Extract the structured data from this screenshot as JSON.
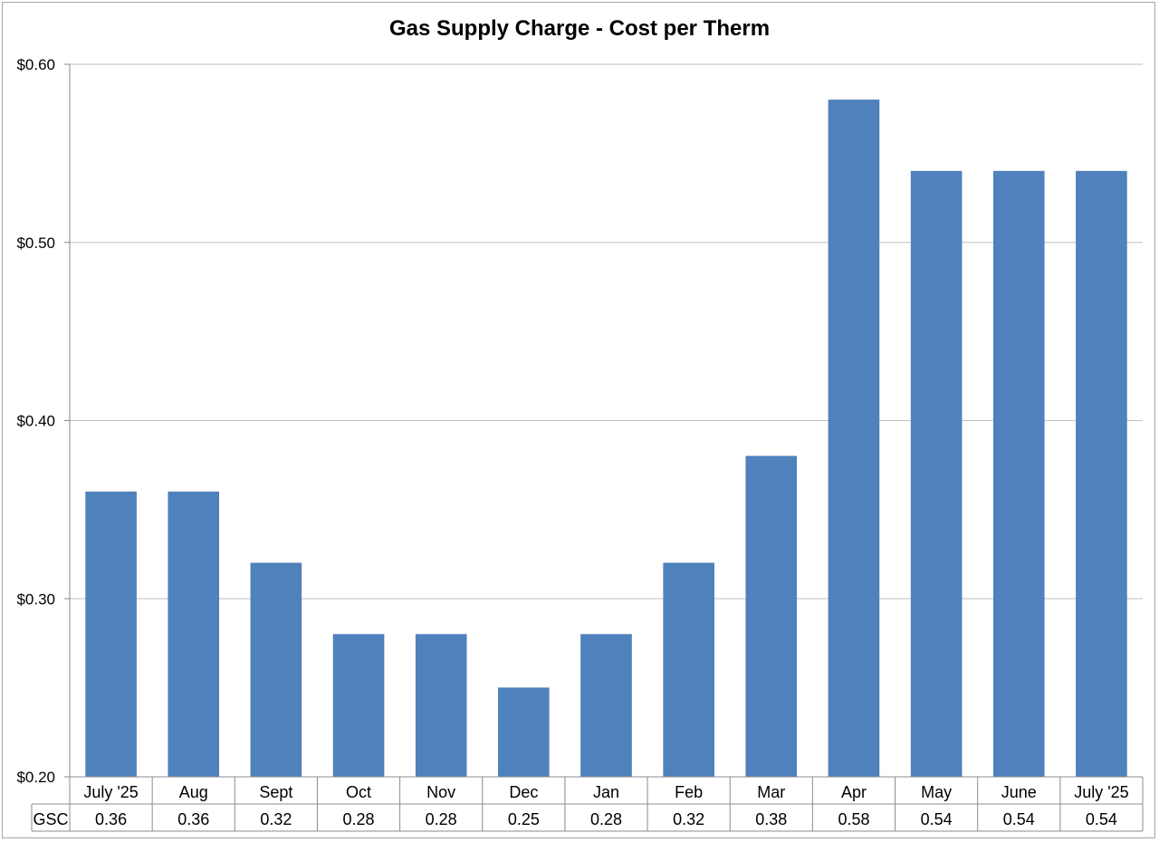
{
  "chart_data": {
    "type": "bar",
    "title": "Gas Supply Charge - Cost per Therm",
    "xlabel": "",
    "ylabel": "",
    "categories": [
      "July '25",
      "Aug",
      "Sept",
      "Oct",
      "Nov",
      "Dec",
      "Jan",
      "Feb",
      "Mar",
      "Apr",
      "May",
      "June",
      "July '25"
    ],
    "series": [
      {
        "name": "GSC",
        "values": [
          0.36,
          0.36,
          0.32,
          0.28,
          0.28,
          0.25,
          0.28,
          0.32,
          0.38,
          0.58,
          0.54,
          0.54,
          0.54
        ],
        "table_values": [
          "0.36",
          "0.36",
          "0.32",
          "0.28",
          "0.28",
          "0.25",
          "0.28",
          "0.32",
          "0.38",
          "0.58",
          "0.54",
          "0.54",
          "0.54"
        ],
        "color": "#4f81bd"
      }
    ],
    "ylim": [
      0.2,
      0.6
    ],
    "yticks": [
      0.2,
      0.3,
      0.4,
      0.5,
      0.6
    ],
    "ytick_labels": [
      "$0.20",
      "$0.30",
      "$0.40",
      "$0.50",
      "$0.60"
    ],
    "grid": true,
    "data_table": true,
    "legend": "none"
  }
}
